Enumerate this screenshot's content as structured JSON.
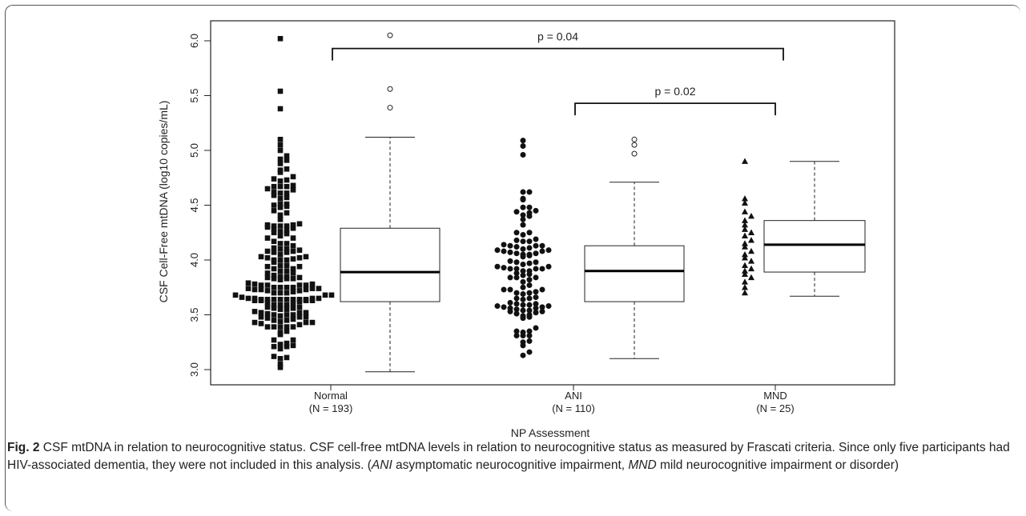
{
  "caption": {
    "label": "Fig. 2",
    "text_1": " CSF mtDNA in relation to neurocognitive status. CSF cell-free mtDNA levels in relation to neurocognitive status as measured by Frascati criteria. Since only five participants had HIV-associated dementia, they were not included in this analysis. (",
    "abbr_1": "ANI",
    "text_2": " asymptomatic neurocognitive impairment, ",
    "abbr_2": "MND",
    "text_3": " mild neurocognitive impairment or disorder)"
  },
  "chart_data": {
    "type": "box",
    "xlabel": "NP Assessment",
    "ylabel": "CSF Cell-Free mtDNA (log10 copies/mL)",
    "ylim": [
      2.95,
      6.1
    ],
    "yticks": [
      "3.0",
      "3.5",
      "4.0",
      "4.5",
      "5.0",
      "5.5",
      "6.0"
    ],
    "grid": false,
    "groups": [
      {
        "label": "Normal",
        "n_label": "(N = 193)",
        "marker": "square",
        "n": 193,
        "box": {
          "whisker_low": 2.98,
          "q1": 3.62,
          "median": 3.89,
          "q3": 4.29,
          "whisker_high": 5.12
        },
        "outliers": [
          5.39,
          5.56,
          6.05
        ],
        "points_extreme": [
          3.02,
          3.05,
          3.1,
          5.05,
          5.1,
          5.38,
          5.54,
          6.02
        ]
      },
      {
        "label": "ANI",
        "n_label": "(N = 110)",
        "marker": "circle",
        "n": 110,
        "box": {
          "whisker_low": 3.1,
          "q1": 3.62,
          "median": 3.9,
          "q3": 4.13,
          "whisker_high": 4.71
        },
        "outliers": [
          4.97,
          5.05,
          5.1
        ],
        "points_extreme": [
          3.13,
          3.16,
          3.22,
          4.96,
          5.04,
          5.09
        ]
      },
      {
        "label": "MND",
        "n_label": "(N = 25)",
        "marker": "triangle",
        "n": 25,
        "box": {
          "whisker_low": 3.67,
          "q1": 3.89,
          "median": 4.14,
          "q3": 4.36,
          "whisker_high": 4.9
        },
        "outliers": [],
        "points": [
          3.7,
          3.75,
          3.8,
          3.84,
          3.87,
          3.9,
          3.92,
          3.95,
          3.99,
          4.02,
          4.05,
          4.08,
          4.12,
          4.15,
          4.18,
          4.22,
          4.25,
          4.28,
          4.32,
          4.36,
          4.4,
          4.44,
          4.52,
          4.56,
          4.9
        ]
      }
    ],
    "annotations": [
      {
        "text": "p = 0.04",
        "from_group": 0,
        "to_group": 2,
        "y": 5.93
      },
      {
        "text": "p = 0.02",
        "from_group": 1,
        "to_group": 2,
        "y": 5.43
      }
    ]
  }
}
